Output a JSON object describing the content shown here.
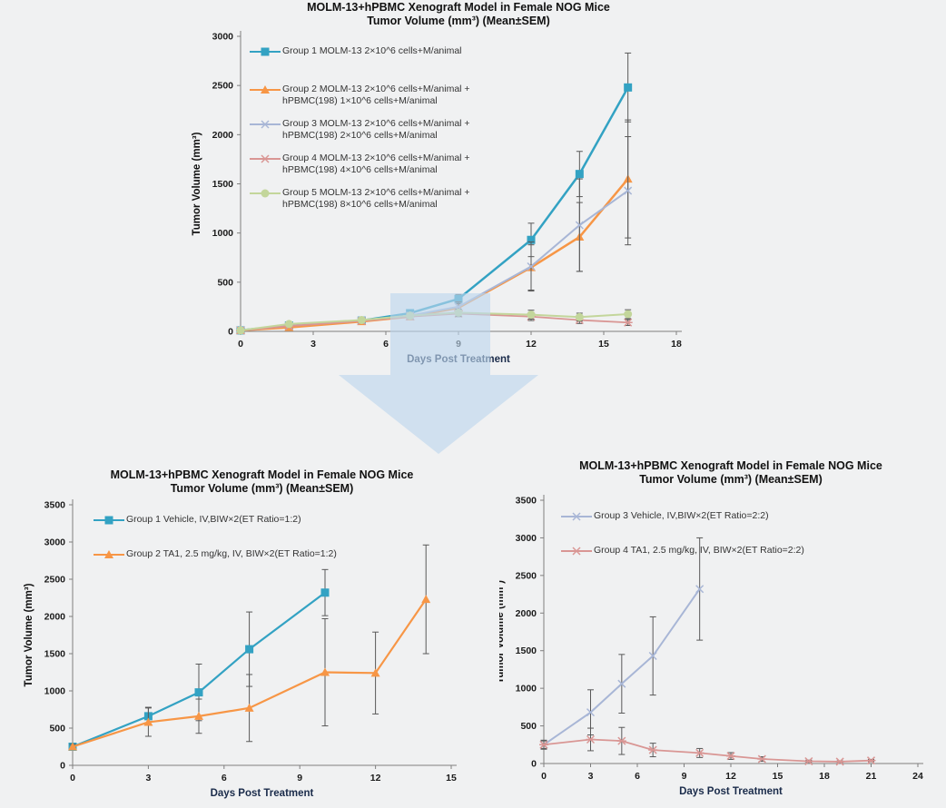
{
  "arrow": {
    "name": "down-arrow",
    "color": "#bdd7ee"
  },
  "chart_data": [
    {
      "type": "line",
      "title_line1": "MOLM-13+hPBMC Xenograft Model in Female NOG Mice",
      "title_line2": "Tumor Volume (mm³) (Mean±SEM)",
      "xlabel": "Days Post Treatment",
      "ylabel": "Tumor Volume (mm³)",
      "xlim": [
        0,
        18
      ],
      "xticks": [
        0,
        3,
        6,
        9,
        12,
        15,
        18
      ],
      "ylim": [
        0,
        3000
      ],
      "yticks": [
        0,
        500,
        1000,
        1500,
        2000,
        2500,
        3000
      ],
      "grid": false,
      "legend_position": "inside-top-left",
      "series": [
        {
          "name": "Group 1 MOLM-13  2×10^6 cells+M/animal",
          "legend_label": "Group 1 MOLM-13  2×10^6 cells+M/animal",
          "color": "#33a2c3",
          "marker": "square",
          "line_width": 2.5,
          "x": [
            0,
            2,
            5,
            7,
            9,
            12,
            14,
            16
          ],
          "y": [
            10,
            60,
            110,
            185,
            330,
            930,
            1600,
            2480
          ],
          "sem": [
            0,
            0,
            0,
            0,
            45,
            170,
            230,
            350
          ]
        },
        {
          "name": "Group 2 MOLM-13  2×10^6 cells+M/animal + hPBMC(198) 1×10^6 cells+M/animal",
          "legend_label": "Group 2 MOLM-13  2×10^6 cells+M/animal +\nhPBMC(198) 1×10^6 cells+M/animal",
          "color": "#f79646",
          "marker": "triangle",
          "line_width": 2.5,
          "x": [
            0,
            2,
            5,
            7,
            9,
            12,
            14,
            16
          ],
          "y": [
            10,
            40,
            100,
            150,
            240,
            650,
            960,
            1550
          ],
          "sem": [
            0,
            0,
            0,
            0,
            40,
            230,
            350,
            600
          ]
        },
        {
          "name": "Group 3 MOLM-13  2×10^6 cells+M/animal + hPBMC(198) 2×10^6 cells+M/animal",
          "legend_label": "Group 3 MOLM-13  2×10^6 cells+M/animal +\nhPBMC(198) 2×10^6 cells+M/animal",
          "color": "#a8b6d6",
          "marker": "x",
          "line_width": 2,
          "x": [
            0,
            2,
            5,
            7,
            9,
            12,
            14,
            16
          ],
          "y": [
            10,
            55,
            110,
            160,
            250,
            660,
            1080,
            1430
          ],
          "sem": [
            0,
            0,
            0,
            0,
            50,
            250,
            470,
            550
          ]
        },
        {
          "name": "Group 4 MOLM-13  2×10^6 cells+M/animal + hPBMC(198) 4×10^6 cells+M/animal",
          "legend_label": "Group 4 MOLM-13  2×10^6 cells+M/animal +\nhPBMC(198) 4×10^6 cells+M/animal",
          "color": "#d99694",
          "marker": "star",
          "line_width": 1.8,
          "x": [
            0,
            2,
            5,
            7,
            9,
            12,
            14,
            16
          ],
          "y": [
            10,
            55,
            105,
            150,
            180,
            150,
            115,
            90
          ],
          "sem": [
            0,
            0,
            0,
            0,
            30,
            40,
            35,
            30
          ]
        },
        {
          "name": "Group 5 MOLM-13  2×10^6 cells+M/animal + hPBMC(198) 8×10^6 cells+M/animal",
          "legend_label": "Group 5 MOLM-13  2×10^6 cells+M/animal +\nhPBMC(198) 8×10^6 cells+M/animal",
          "color": "#c3d69b",
          "marker": "circle",
          "line_width": 2,
          "x": [
            0,
            2,
            5,
            7,
            9,
            12,
            14,
            16
          ],
          "y": [
            10,
            75,
            115,
            160,
            190,
            170,
            145,
            175
          ],
          "sem": [
            0,
            0,
            0,
            0,
            35,
            45,
            40,
            45
          ]
        }
      ]
    },
    {
      "type": "line",
      "title_line1": "MOLM-13+hPBMC Xenograft Model in Female NOG Mice",
      "title_line2": "Tumor Volume (mm³) (Mean±SEM)",
      "xlabel": "Days Post Treatment",
      "ylabel": "Tumor Volume (mm³)",
      "xlim": [
        0,
        15
      ],
      "xticks": [
        0,
        3,
        6,
        9,
        12,
        15
      ],
      "ylim": [
        0,
        3500
      ],
      "yticks": [
        0,
        500,
        1000,
        1500,
        2000,
        2500,
        3000,
        3500
      ],
      "grid": false,
      "legend_position": "inside-top-left",
      "series": [
        {
          "name": "Group 1 Vehicle, IV,BIW×2(ET Ratio=1:2)",
          "legend_label": "Group 1 Vehicle, IV,BIW×2(ET Ratio=1:2)",
          "color": "#33a2c3",
          "marker": "square",
          "line_width": 2.2,
          "x": [
            0,
            3,
            5,
            7,
            10
          ],
          "y": [
            250,
            660,
            980,
            1560,
            2320
          ],
          "sem": [
            30,
            120,
            380,
            500,
            310
          ]
        },
        {
          "name": "Group 2 TA1, 2.5 mg/kg, IV, BIW×2(ET Ratio=1:2)",
          "legend_label": "Group 2 TA1, 2.5 mg/kg, IV, BIW×2(ET Ratio=1:2)",
          "color": "#f79646",
          "marker": "triangle",
          "line_width": 2.2,
          "x": [
            0,
            3,
            5,
            7,
            10,
            12,
            14
          ],
          "y": [
            250,
            580,
            660,
            770,
            1250,
            1240,
            2230
          ],
          "sem": [
            30,
            190,
            230,
            450,
            720,
            550,
            730
          ]
        }
      ]
    },
    {
      "type": "line",
      "title_line1": "MOLM-13+hPBMC Xenograft Model in Female NOG Mice",
      "title_line2": "Tumor Volume (mm³) (Mean±SEM)",
      "xlabel": "Days Post Treatment",
      "ylabel": "Tumor Volume (mm³)",
      "xlim": [
        0,
        24
      ],
      "xticks": [
        0,
        3,
        6,
        9,
        12,
        15,
        18,
        21,
        24
      ],
      "ylim": [
        0,
        3500
      ],
      "yticks": [
        0,
        500,
        1000,
        1500,
        2000,
        2500,
        3000,
        3500
      ],
      "grid": false,
      "legend_position": "inside-top-left",
      "series": [
        {
          "name": "Group 3 Vehicle, IV,BIW×2(ET Ratio=2:2)",
          "legend_label": "Group 3 Vehicle, IV,BIW×2(ET Ratio=2:2)",
          "color": "#a8b6d6",
          "marker": "x",
          "line_width": 2,
          "x": [
            0,
            3,
            5,
            7,
            10
          ],
          "y": [
            250,
            680,
            1060,
            1430,
            2320
          ],
          "sem": [
            60,
            300,
            390,
            520,
            680
          ]
        },
        {
          "name": "Group 4 TA1, 2.5 mg/kg, IV, BIW×2(ET Ratio=2:2)",
          "legend_label": "Group 4 TA1, 2.5 mg/kg, IV, BIW×2(ET Ratio=2:2)",
          "color": "#d99694",
          "marker": "star",
          "line_width": 1.8,
          "x": [
            0,
            3,
            5,
            7,
            10,
            12,
            14,
            17,
            19,
            21
          ],
          "y": [
            250,
            320,
            300,
            180,
            140,
            100,
            60,
            30,
            25,
            40
          ],
          "sem": [
            50,
            150,
            180,
            90,
            60,
            45,
            30,
            15,
            10,
            15
          ]
        }
      ]
    }
  ]
}
